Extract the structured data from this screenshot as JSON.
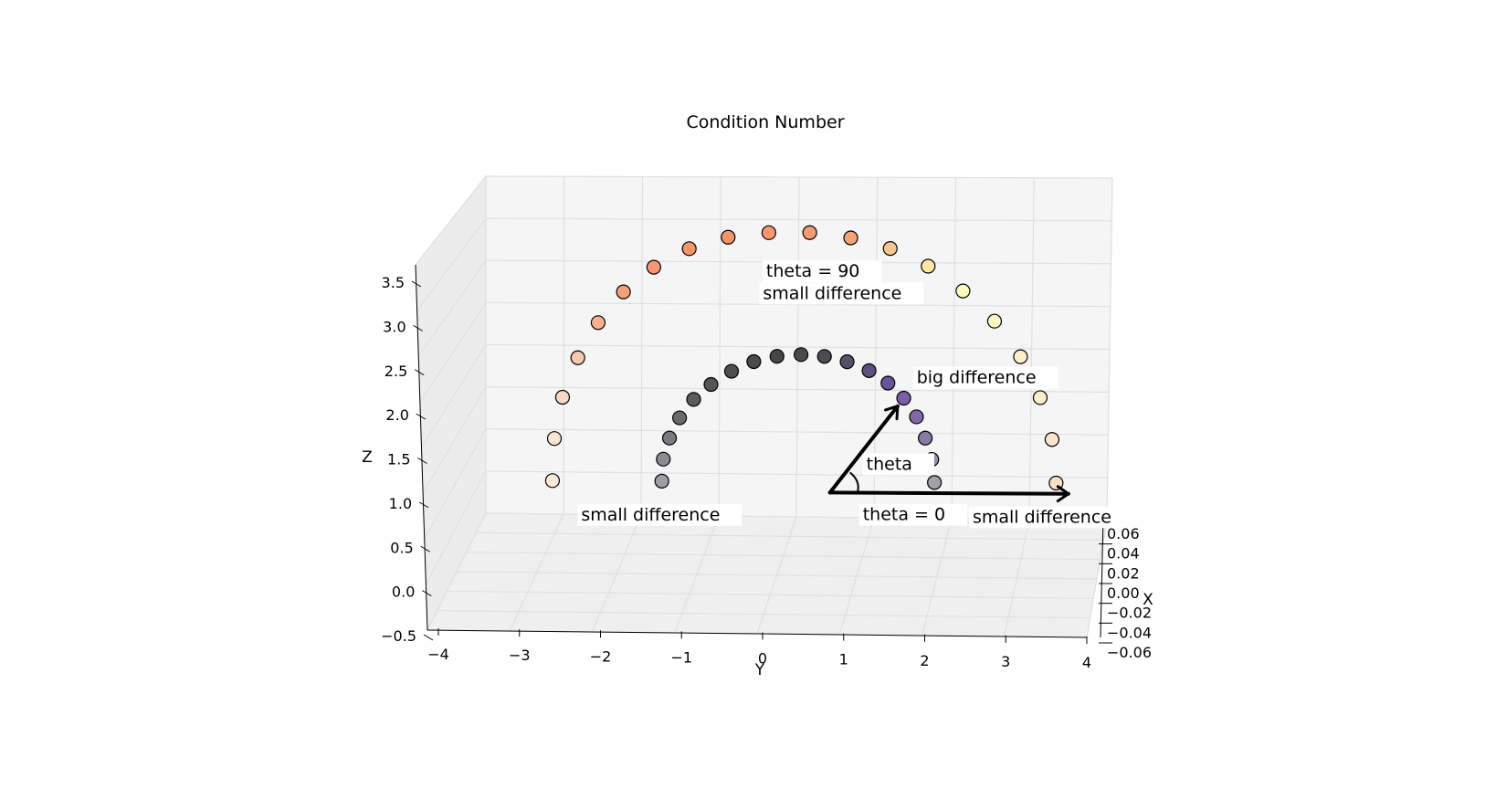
{
  "chart_data": {
    "type": "scatter",
    "title": "Condition Number",
    "xlabel": "Y",
    "ylabel": "Z",
    "depth_label": "X",
    "y_axis_ticks": [
      "−4",
      "−3",
      "−2",
      "−1",
      "0",
      "1",
      "2",
      "3",
      "4"
    ],
    "z_axis_ticks": [
      "−0.5",
      "0.0",
      "0.5",
      "1.0",
      "1.5",
      "2.0",
      "2.5",
      "3.0",
      "3.5"
    ],
    "x_axis_ticks": [
      "−0.06",
      "−0.04",
      "−0.02",
      "0.00",
      "0.02",
      "0.04",
      "0.06"
    ],
    "xlim": [
      -4,
      4
    ],
    "zlim": [
      -0.5,
      3.5
    ],
    "grid": true,
    "series": [
      {
        "points": [
          {
            "y": -3.2,
            "z": 0.0,
            "color": "#f8e9d8"
          },
          {
            "y": -3.15,
            "z": 0.48,
            "color": "#f8e5d2"
          },
          {
            "y": -3.02,
            "z": 0.95,
            "color": "#f6d8c4"
          },
          {
            "y": -2.8,
            "z": 1.4,
            "color": "#f6c8ac"
          },
          {
            "y": -2.52,
            "z": 1.8,
            "color": "#f6b190"
          },
          {
            "y": -2.18,
            "z": 2.15,
            "color": "#f6a07a"
          },
          {
            "y": -1.78,
            "z": 2.43,
            "color": "#f69870"
          },
          {
            "y": -1.32,
            "z": 2.64,
            "color": "#f69568"
          },
          {
            "y": -0.82,
            "z": 2.77,
            "color": "#f69568"
          },
          {
            "y": -0.3,
            "z": 2.82,
            "color": "#f6986c"
          },
          {
            "y": 0.22,
            "z": 2.82,
            "color": "#f69a70"
          },
          {
            "y": 0.74,
            "z": 2.76,
            "color": "#f6a477"
          },
          {
            "y": 1.24,
            "z": 2.64,
            "color": "#f8c48d"
          },
          {
            "y": 1.72,
            "z": 2.44,
            "color": "#fde7a3"
          },
          {
            "y": 2.16,
            "z": 2.16,
            "color": "#fefaba"
          },
          {
            "y": 2.56,
            "z": 1.82,
            "color": "#fdf7c4"
          },
          {
            "y": 2.89,
            "z": 1.42,
            "color": "#fcefc8"
          },
          {
            "y": 3.14,
            "z": 0.96,
            "color": "#fbecce"
          },
          {
            "y": 3.29,
            "z": 0.49,
            "color": "#fbe6cc"
          },
          {
            "y": 3.34,
            "z": 0.0,
            "color": "#f9dfc4"
          }
        ]
      },
      {
        "points": [
          {
            "y": -1.78,
            "z": 0.0,
            "color": "#a09da8"
          },
          {
            "y": -1.75,
            "z": 0.25,
            "color": "#8c8a94"
          },
          {
            "y": -1.66,
            "z": 0.49,
            "color": "#7a7a80"
          },
          {
            "y": -1.52,
            "z": 0.72,
            "color": "#6a6a6e"
          },
          {
            "y": -1.33,
            "z": 0.93,
            "color": "#5c5c5e"
          },
          {
            "y": -1.1,
            "z": 1.1,
            "color": "#555556"
          },
          {
            "y": -0.83,
            "z": 1.25,
            "color": "#4e4e4e"
          },
          {
            "y": -0.54,
            "z": 1.36,
            "color": "#4a4a4a"
          },
          {
            "y": -0.24,
            "z": 1.42,
            "color": "#474747"
          },
          {
            "y": 0.07,
            "z": 1.44,
            "color": "#4a4a4a"
          },
          {
            "y": 0.37,
            "z": 1.42,
            "color": "#4c4c54"
          },
          {
            "y": 0.66,
            "z": 1.36,
            "color": "#555268"
          },
          {
            "y": 0.94,
            "z": 1.26,
            "color": "#5e4f80"
          },
          {
            "y": 1.18,
            "z": 1.12,
            "color": "#6b5399"
          },
          {
            "y": 1.38,
            "z": 0.95,
            "color": "#7a5fa8"
          },
          {
            "y": 1.54,
            "z": 0.74,
            "color": "#8268a8"
          },
          {
            "y": 1.65,
            "z": 0.5,
            "color": "#8a7aa6"
          },
          {
            "y": 1.73,
            "z": 0.26,
            "color": "#9490a6"
          },
          {
            "y": 1.76,
            "z": 0.0,
            "color": "#a3a0ac"
          }
        ]
      }
    ],
    "annotations": [
      {
        "text": "theta = 90",
        "y": -0.35,
        "z": 2.32
      },
      {
        "text": "small difference",
        "y": -0.4,
        "z": 2.07
      },
      {
        "text": "big difference",
        "y": 1.55,
        "z": 1.12
      },
      {
        "text": "theta",
        "y": 0.88,
        "z": 0.14
      },
      {
        "text": "small difference",
        "y": -2.85,
        "z": -0.45
      },
      {
        "text": "theta = 0",
        "y": 0.82,
        "z": -0.43
      },
      {
        "text": "small difference",
        "y": 2.25,
        "z": -0.45
      }
    ],
    "arrows": [
      {
        "from": {
          "y": 0.4,
          "z": -0.12
        },
        "to": {
          "y": 1.3,
          "z": 0.86
        }
      },
      {
        "from": {
          "y": 0.4,
          "z": -0.12
        },
        "to": {
          "y": 3.5,
          "z": -0.12
        }
      }
    ]
  }
}
